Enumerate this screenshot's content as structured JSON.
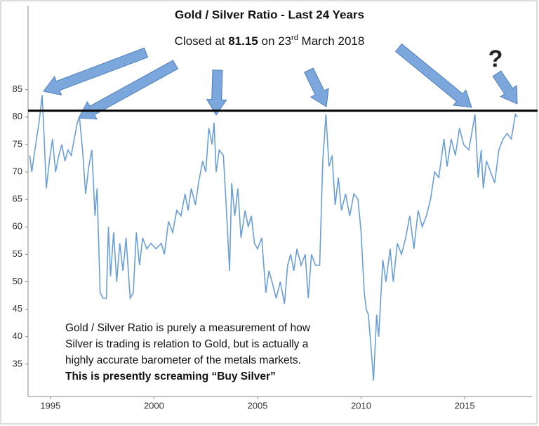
{
  "chart_data": {
    "type": "line",
    "title": "Gold / Silver Ratio  - Last 24 Years",
    "subtitle_parts": [
      "Closed at ",
      "81.15",
      " on 23",
      "rd",
      " March 2018"
    ],
    "reference_line": 81.15,
    "reference_color": "#000000",
    "question_mark": "?",
    "annotation_lines": [
      "Gold / Silver Ratio is purely a measurement of how",
      "Silver is trading is relation to Gold, but is actually a",
      "highly accurate barometer of the metals markets."
    ],
    "annotation_bold": "This is presently screaming “Buy Silver”",
    "xlim": [
      1993.92,
      2018.25
    ],
    "xticks": [
      1995,
      2000,
      2005,
      2010,
      2015
    ],
    "ylim": [
      29.1,
      100.3
    ],
    "yticks": [
      35,
      40,
      45,
      50,
      55,
      60,
      65,
      70,
      75,
      80,
      85
    ],
    "series": [
      {
        "color": "#6a9fd6",
        "x": [
          1994.0,
          1994.1,
          1994.25,
          1994.45,
          1994.6,
          1994.7,
          1994.8,
          1994.95,
          1995.1,
          1995.25,
          1995.4,
          1995.55,
          1995.7,
          1995.85,
          1996.0,
          1996.15,
          1996.3,
          1996.4,
          1996.55,
          1996.7,
          1996.85,
          1997.0,
          1997.15,
          1997.25,
          1997.4,
          1997.55,
          1997.7,
          1997.8,
          1997.9,
          1998.05,
          1998.2,
          1998.35,
          1998.5,
          1998.65,
          1998.85,
          1999.0,
          1999.15,
          1999.3,
          1999.45,
          1999.65,
          1999.85,
          2000.1,
          2000.35,
          2000.5,
          2000.7,
          2000.9,
          2001.1,
          2001.3,
          2001.5,
          2001.65,
          2001.8,
          2002.0,
          2002.15,
          2002.35,
          2002.5,
          2002.65,
          2002.8,
          2002.9,
          2003.0,
          2003.15,
          2003.35,
          2003.5,
          2003.65,
          2003.75,
          2003.9,
          2004.05,
          2004.2,
          2004.4,
          2004.55,
          2004.7,
          2004.85,
          2005.0,
          2005.2,
          2005.4,
          2005.55,
          2005.7,
          2005.9,
          2006.1,
          2006.3,
          2006.45,
          2006.6,
          2006.75,
          2006.9,
          2007.1,
          2007.3,
          2007.45,
          2007.6,
          2007.8,
          2008.0,
          2008.15,
          2008.3,
          2008.45,
          2008.6,
          2008.75,
          2008.9,
          2009.05,
          2009.25,
          2009.45,
          2009.65,
          2009.85,
          2010.0,
          2010.15,
          2010.25,
          2010.35,
          2010.5,
          2010.6,
          2010.75,
          2010.85,
          2011.05,
          2011.2,
          2011.4,
          2011.55,
          2011.75,
          2011.95,
          2012.15,
          2012.35,
          2012.55,
          2012.75,
          2012.95,
          2013.15,
          2013.35,
          2013.55,
          2013.75,
          2014.0,
          2014.15,
          2014.35,
          2014.55,
          2014.75,
          2014.95,
          2015.2,
          2015.5,
          2015.65,
          2015.8,
          2015.9,
          2016.05,
          2016.25,
          2016.45,
          2016.65,
          2016.85,
          2017.05,
          2017.25,
          2017.45,
          2017.55
        ],
        "values": [
          73,
          70,
          74,
          79,
          84,
          76,
          67,
          72,
          76,
          70,
          73,
          75,
          72,
          74,
          73,
          76,
          79,
          80,
          74,
          66,
          71,
          74,
          62,
          67,
          48,
          47,
          47,
          60,
          51,
          59,
          50,
          57,
          52,
          58,
          47,
          48,
          59,
          53,
          58,
          56,
          57,
          56,
          57,
          55,
          61,
          59,
          63,
          62,
          66,
          63,
          67,
          64,
          68,
          72,
          70,
          78,
          75,
          79,
          70,
          74,
          73,
          63,
          52,
          68,
          62,
          67,
          58,
          63,
          60,
          62,
          57,
          56,
          58,
          48,
          52,
          50,
          47,
          50,
          46,
          53,
          55,
          52,
          56,
          53,
          55,
          47,
          55,
          53,
          53,
          72,
          80.5,
          71,
          73,
          64,
          69,
          63,
          66,
          62,
          66,
          65,
          59,
          48,
          45,
          44,
          37,
          32,
          44,
          40,
          54,
          50,
          56,
          50,
          57,
          55,
          58,
          62,
          56,
          63,
          60,
          62,
          65,
          70,
          69,
          76,
          71,
          76,
          73,
          78,
          75,
          74,
          80.5,
          69,
          74,
          67,
          72,
          70,
          68,
          74,
          76,
          77,
          76,
          80.5,
          80
        ]
      }
    ]
  }
}
